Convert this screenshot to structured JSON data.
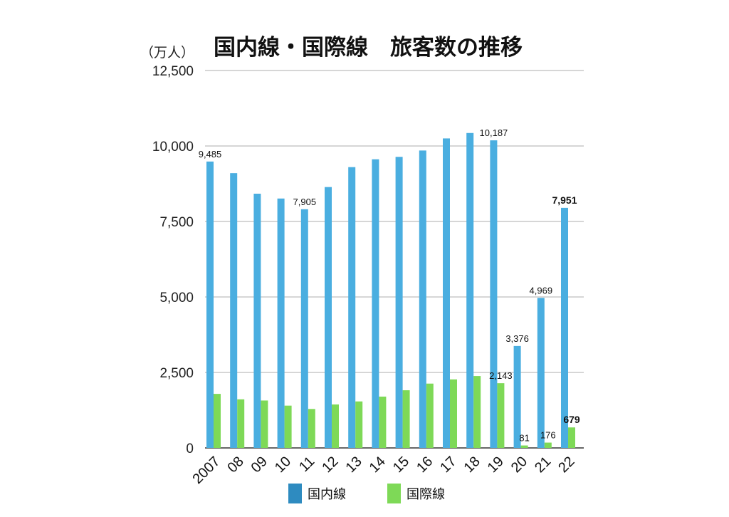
{
  "chart_data": {
    "type": "bar",
    "title": "国内線・国際線　旅客数の推移",
    "unit_label": "（万人）",
    "categories": [
      "2007",
      "08",
      "09",
      "10",
      "11",
      "12",
      "13",
      "14",
      "15",
      "16",
      "17",
      "18",
      "19",
      "20",
      "21",
      "22"
    ],
    "series": [
      {
        "name": "国内線",
        "color": "#4aaee0",
        "legend_color": "#2e8bc0",
        "values": [
          9485,
          9100,
          8420,
          8260,
          7905,
          8640,
          9300,
          9560,
          9640,
          9850,
          10250,
          10430,
          10187,
          3376,
          4969,
          7951
        ]
      },
      {
        "name": "国際線",
        "color": "#7ed957",
        "legend_color": "#7ed957",
        "values": [
          1790,
          1610,
          1570,
          1400,
          1290,
          1440,
          1540,
          1700,
          1910,
          2130,
          2270,
          2380,
          2143,
          81,
          176,
          679
        ]
      }
    ],
    "y_ticks": [
      "0",
      "2,500",
      "5,000",
      "7,500",
      "10,000",
      "12,500"
    ],
    "y_tick_values": [
      0,
      2500,
      5000,
      7500,
      10000,
      12500
    ],
    "ylim": [
      0,
      12500
    ],
    "grid": true,
    "legend": "bottom",
    "data_labels": [
      {
        "series": 0,
        "index": 0,
        "text": "9,485",
        "highlight": false
      },
      {
        "series": 0,
        "index": 4,
        "text": "7,905",
        "highlight": false
      },
      {
        "series": 0,
        "index": 12,
        "text": "10,187",
        "highlight": false
      },
      {
        "series": 0,
        "index": 13,
        "text": "3,376",
        "highlight": false
      },
      {
        "series": 0,
        "index": 14,
        "text": "4,969",
        "highlight": false
      },
      {
        "series": 0,
        "index": 15,
        "text": "7,951",
        "highlight": true
      },
      {
        "series": 1,
        "index": 12,
        "text": "2,143",
        "highlight": false
      },
      {
        "series": 1,
        "index": 13,
        "text": "81",
        "highlight": false
      },
      {
        "series": 1,
        "index": 14,
        "text": "176",
        "highlight": false
      },
      {
        "series": 1,
        "index": 15,
        "text": "679",
        "highlight": true
      }
    ],
    "highlight_color": "#e8434b",
    "grid_color": "#c8c8c8",
    "axis_color": "#333333"
  }
}
